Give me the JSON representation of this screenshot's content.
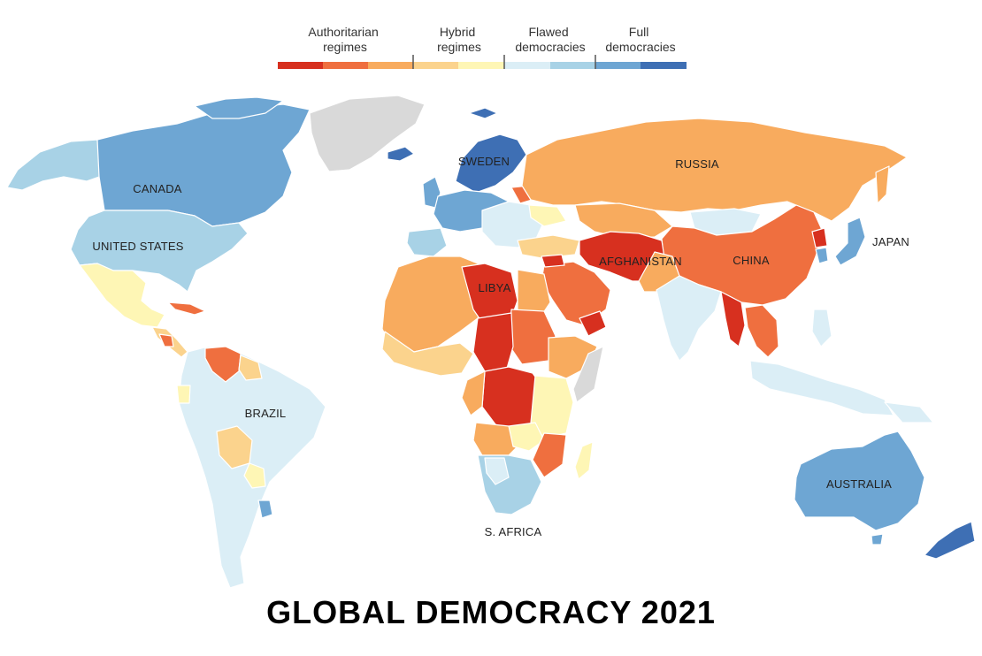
{
  "title": "GLOBAL DEMOCRACY 2021",
  "legend": {
    "categories": [
      {
        "label_line1": "Authoritarian",
        "label_line2": "regimes"
      },
      {
        "label_line1": "Hybrid",
        "label_line2": "regimes"
      },
      {
        "label_line1": "Flawed",
        "label_line2": "democracies"
      },
      {
        "label_line1": "Full",
        "label_line2": "democracies"
      }
    ],
    "scale_colors": [
      "#d7301f",
      "#ef6f3f",
      "#f8ab5e",
      "#fbd38d",
      "#fef6b5",
      "#dbeef6",
      "#a8d2e6",
      "#6ea6d3",
      "#3e6fb4"
    ]
  },
  "map_labels": {
    "canada": "CANADA",
    "united_states": "UNITED STATES",
    "brazil": "BRAZIL",
    "sweden": "SWEDEN",
    "russia": "RUSSIA",
    "libya": "LIBYA",
    "afghanistan": "AFGHANISTAN",
    "china": "CHINA",
    "japan": "JAPAN",
    "australia": "AUSTRALIA",
    "s_africa": "S. AFRICA"
  },
  "colors": {
    "authoritarian_dark": "#d7301f",
    "authoritarian_mid": "#ef6f3f",
    "authoritarian_light": "#f8ab5e",
    "hybrid_dark": "#fbd38d",
    "hybrid_light": "#fef6b5",
    "flawed_light": "#dbeef6",
    "flawed_dark": "#a8d2e6",
    "full_light": "#6ea6d3",
    "full_dark": "#3e6fb4",
    "no_data": "#d9d9d9"
  }
}
